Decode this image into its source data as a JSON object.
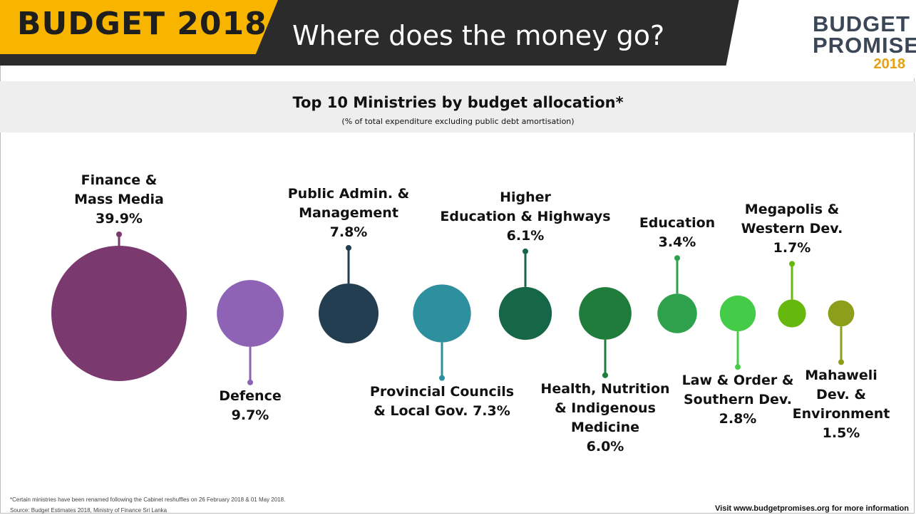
{
  "header": {
    "badge": "BUDGET 2018",
    "headline": "Where does the money go?",
    "logo_line1": "BUDGET",
    "logo_line2": "PROMISES",
    "logo_year": "2018"
  },
  "colors": {
    "header_bar": "#2b2b2b",
    "badge_yellow": "#f7b500",
    "logo_text": "#3b4656",
    "logo_year": "#e2a117"
  },
  "chart_data": {
    "type": "bubble",
    "title": "Top 10 Ministries by budget allocation*",
    "subtitle": "(% of total expenditure excluding public debt amortisation)",
    "categories": [
      "Finance & Mass Media",
      "Defence",
      "Public Admin. & Management",
      "Provincial Councils & Local Gov.",
      "Higher Education & Highways",
      "Health, Nutrition & Indigenous Medicine",
      "Education",
      "Law & Order & Southern Dev.",
      "Megapolis & Western Dev.",
      "Mahaweli Dev. & Environment"
    ],
    "values": [
      39.9,
      9.7,
      7.8,
      7.3,
      6.1,
      6.0,
      3.4,
      2.8,
      1.7,
      1.5
    ],
    "unit": "%",
    "colors": [
      "#7b3a6f",
      "#8e62b5",
      "#243e51",
      "#2e8f9e",
      "#166648",
      "#1f7c3b",
      "#2ea14c",
      "#44cc48",
      "#67b80c",
      "#8d9e1a"
    ],
    "label_lines": [
      [
        "Finance &",
        "Mass Media",
        "39.9%"
      ],
      [
        "Defence",
        "9.7%"
      ],
      [
        "Public Admin. &",
        "Management",
        "7.8%"
      ],
      [
        "Provincial Councils",
        "& Local Gov. 7.3%"
      ],
      [
        "Higher",
        "Education & Highways",
        "6.1%"
      ],
      [
        "Health, Nutrition",
        "& Indigenous",
        "Medicine",
        "6.0%"
      ],
      [
        "Education",
        "3.4%"
      ],
      [
        "Law & Order &",
        "Southern Dev.",
        "2.8%"
      ],
      [
        "Megapolis &",
        "Western Dev.",
        "1.7%"
      ],
      [
        "Mahaweli",
        "Dev. &",
        "Environment",
        "1.5%"
      ]
    ],
    "label_position": [
      "above",
      "below",
      "above",
      "below",
      "above",
      "below",
      "above",
      "below",
      "above",
      "below"
    ]
  },
  "footer": {
    "footnote": "*Certain  ministries have been renamed following the Cabinet reshuffles on 26 February 2018 & 01 May 2018.",
    "source": "Source: Budget Estimates 2018, Ministry of Finance Sri Lanka",
    "visit": "Visit www.budgetpromises.org for more information"
  }
}
